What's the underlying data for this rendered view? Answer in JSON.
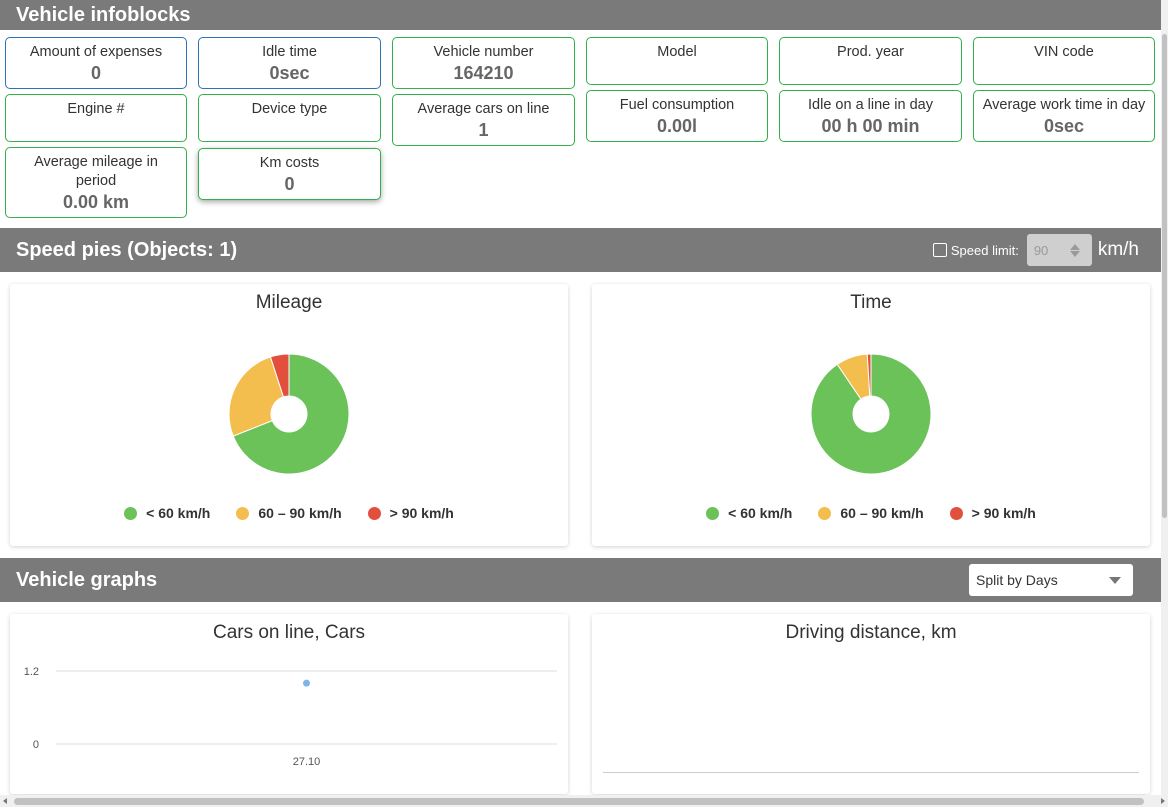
{
  "infoblocks": {
    "title": "Vehicle infoblocks",
    "items": [
      {
        "label": "Amount of expenses",
        "value": "0"
      },
      {
        "label": "Idle time",
        "value": "0sec"
      },
      {
        "label": "Vehicle number",
        "value": "164210"
      },
      {
        "label": "Model",
        "value": ""
      },
      {
        "label": "Prod. year",
        "value": ""
      },
      {
        "label": "VIN code",
        "value": ""
      },
      {
        "label": "Engine #",
        "value": ""
      },
      {
        "label": "Device type",
        "value": ""
      },
      {
        "label": "Average cars on line",
        "value": "1"
      },
      {
        "label": "Fuel consumption",
        "value": "0.00l"
      },
      {
        "label": "Idle on a line in day",
        "value": "00 h 00 min"
      },
      {
        "label": "Average work time in day",
        "value": "0sec"
      },
      {
        "label": "Average mileage in period",
        "value": "0.00 km"
      },
      {
        "label": "Km costs",
        "value": "0"
      }
    ]
  },
  "speed_pies": {
    "title": "Speed pies (Objects: 1)",
    "speed_limit_label": "Speed limit:",
    "speed_limit_value": "90",
    "unit": "km/h",
    "legend": [
      {
        "label": "< 60 km/h",
        "color": "#6ac259"
      },
      {
        "label": "60 – 90 km/h",
        "color": "#f4be4f"
      },
      {
        "label": "> 90 km/h",
        "color": "#e2503d"
      }
    ]
  },
  "chart_data": [
    {
      "type": "pie",
      "title": "Mileage",
      "categories": [
        "< 60 km/h",
        "60 – 90 km/h",
        "> 90 km/h"
      ],
      "values": [
        69,
        26,
        5
      ],
      "colors": [
        "#6ac259",
        "#f4be4f",
        "#e2503d"
      ]
    },
    {
      "type": "pie",
      "title": "Time",
      "categories": [
        "< 60 km/h",
        "60 – 90 km/h",
        "> 90 km/h"
      ],
      "values": [
        90.5,
        8.5,
        1
      ],
      "colors": [
        "#6ac259",
        "#f4be4f",
        "#e2503d"
      ]
    },
    {
      "type": "scatter",
      "title": "Cars on line, Cars",
      "x": [
        "27.10"
      ],
      "y": [
        1
      ],
      "yticks": [
        "0",
        "1.2"
      ],
      "ylim": [
        0,
        1.2
      ],
      "grid": true
    },
    {
      "type": "line",
      "title": "Driving distance, km",
      "x": [],
      "y": []
    }
  ],
  "graphs": {
    "title": "Vehicle graphs",
    "split_value": "Split by Days"
  }
}
